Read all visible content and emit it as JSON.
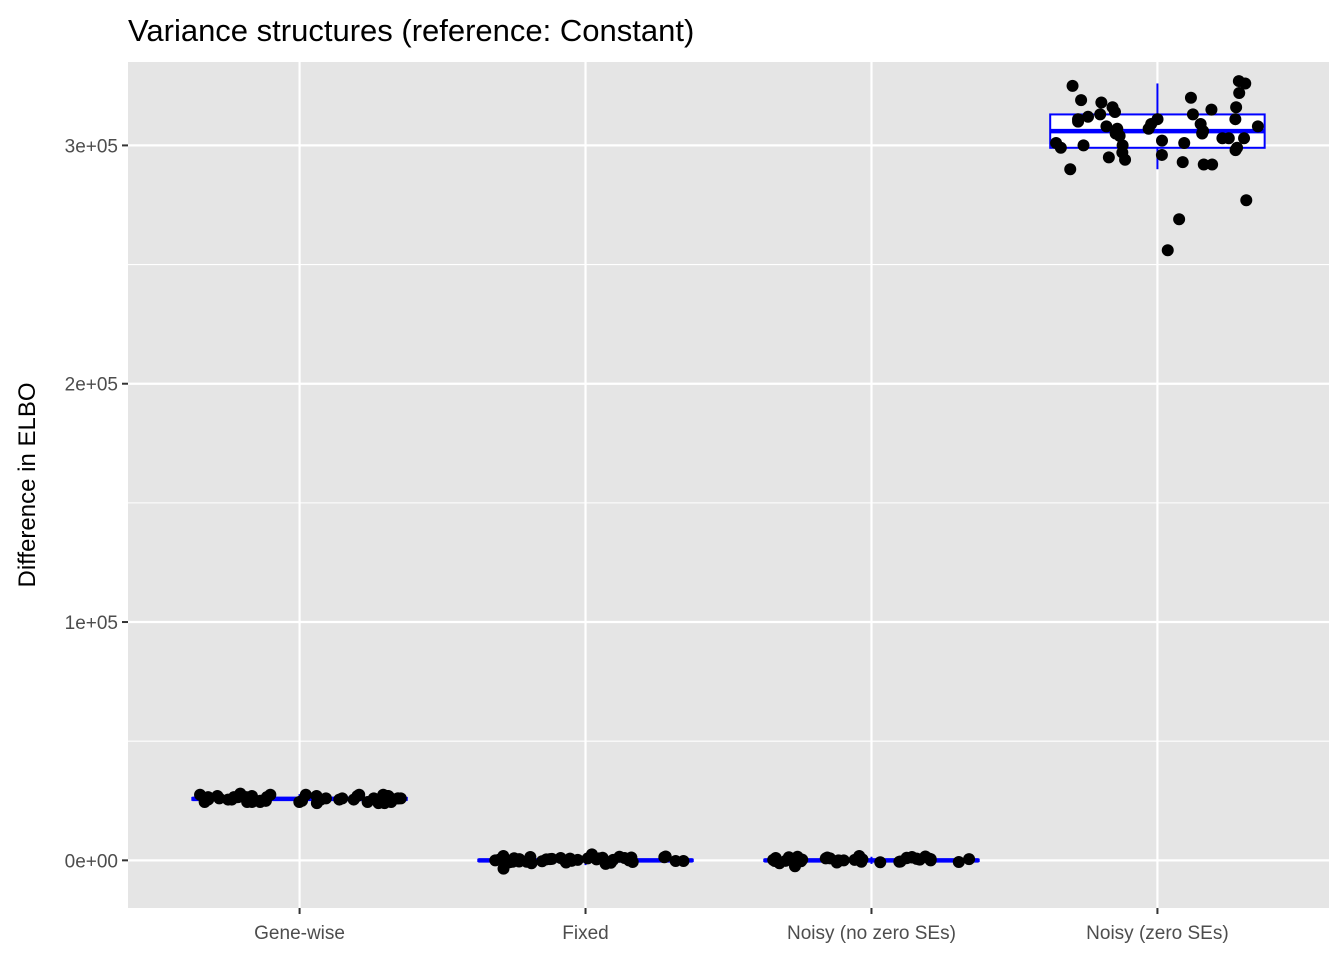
{
  "chart_data": {
    "type": "boxplot",
    "title": "Variance structures (reference: Constant)",
    "xlabel": "",
    "ylabel": "Difference in ELBO",
    "categories": [
      "Gene-wise",
      "Fixed",
      "Noisy (no zero SEs)",
      "Noisy (zero SEs)"
    ],
    "y_ticks": [
      {
        "value": 0,
        "label": "0e+00"
      },
      {
        "value": 100000,
        "label": "1e+05"
      },
      {
        "value": 200000,
        "label": "2e+05"
      },
      {
        "value": 300000,
        "label": "3e+05"
      }
    ],
    "ylim": [
      -20000,
      335000
    ],
    "grid": true,
    "legend": "none",
    "colors": {
      "panel_background": "#e5e5e5",
      "grid": "#ffffff",
      "box": "#0000ff",
      "points": "#000000"
    },
    "boxes": [
      {
        "category": "Gene-wise",
        "min": 23800,
        "q1": 25400,
        "median": 25800,
        "q3": 26200,
        "max": 27800
      },
      {
        "category": "Fixed",
        "min": -2000,
        "q1": -300,
        "median": 0,
        "q3": 300,
        "max": 2000
      },
      {
        "category": "Noisy (no zero SEs)",
        "min": -1500,
        "q1": -300,
        "median": 0,
        "q3": 300,
        "max": 1500
      },
      {
        "category": "Noisy (zero SEs)",
        "min": 290000,
        "q1": 299000,
        "median": 306000,
        "q3": 313000,
        "max": 326000
      }
    ],
    "points": [
      {
        "category": "Gene-wise",
        "values": [
          27000,
          24500,
          26000,
          25000,
          27500,
          26500,
          25500,
          24000,
          26000,
          27000,
          25000,
          26500,
          24500,
          27500,
          26000,
          25500,
          26500,
          24500,
          27000,
          25500,
          26000,
          28000,
          24000,
          26500,
          25500,
          27000,
          24500,
          26000,
          25000,
          26500,
          27500,
          25000,
          26000,
          24500,
          27000,
          25500,
          26500,
          24000,
          27500,
          26000,
          25500,
          27000,
          24500,
          26500,
          26000,
          25000,
          27500,
          26000,
          25500,
          24500
        ]
      },
      {
        "category": "Fixed",
        "values": [
          1000,
          -1500,
          500,
          1200,
          -800,
          2500,
          0,
          800,
          -500,
          1500,
          -300,
          600,
          -1000,
          200,
          1800,
          -600,
          400,
          -3500,
          900,
          -200,
          1400,
          -1200,
          700,
          300,
          -700,
          1100,
          0,
          -400,
          1600,
          500,
          -900,
          200,
          1300,
          -300,
          800,
          0,
          1000,
          -600,
          400,
          700
        ]
      },
      {
        "category": "Noisy (no zero SEs)",
        "values": [
          500,
          -800,
          1200,
          0,
          800,
          -500,
          1500,
          -300,
          600,
          -1000,
          200,
          1800,
          -600,
          400,
          900,
          -200,
          1400,
          -1200,
          700,
          300,
          -700,
          1100,
          0,
          -400,
          1600,
          500,
          -900,
          200,
          1300,
          -2500,
          800,
          0,
          1000,
          -600,
          400,
          700,
          -100,
          1200,
          300,
          -300
        ]
      },
      {
        "category": "Noisy (zero SEs)",
        "values": [
          327000,
          320000,
          316000,
          313000,
          311000,
          309000,
          307000,
          305000,
          303000,
          301000,
          299000,
          296000,
          293000,
          326000,
          322000,
          318000,
          315000,
          313000,
          311000,
          309000,
          307000,
          305000,
          303000,
          301000,
          300000,
          297000,
          295000,
          292000,
          290000,
          277000,
          269000,
          256000,
          325000,
          319000,
          314000,
          312000,
          310000,
          308000,
          306000,
          304000,
          302000,
          300000,
          298000,
          294000,
          316000,
          311000,
          308000,
          303000,
          299000,
          292000
        ]
      }
    ]
  }
}
